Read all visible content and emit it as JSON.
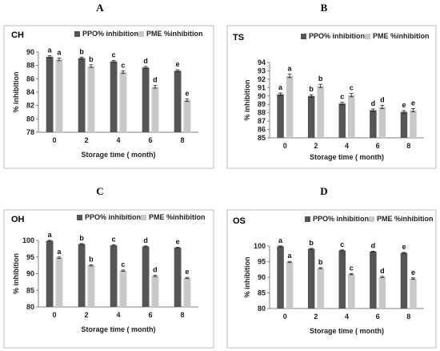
{
  "colors": {
    "ppo": "#555555",
    "pme": "#c8c8c8",
    "frame": "#bdbdbd",
    "axis": "#808080",
    "error": "#222222"
  },
  "chart_data": [
    {
      "type": "bar",
      "panel": "A",
      "title": "CH",
      "categories": [
        "0",
        "2",
        "4",
        "6",
        "8"
      ],
      "xlabel": "Storage time ( month)",
      "ylabel": "% inhibition",
      "ylim": [
        78,
        90
      ],
      "yticks": [
        78,
        80,
        82,
        84,
        86,
        88,
        90
      ],
      "legend_position": "top",
      "grid": false,
      "series": [
        {
          "name": "PPO% inhibition",
          "values": [
            89.3,
            89.1,
            88.6,
            87.7,
            87.2
          ],
          "errors": [
            0.15,
            0.15,
            0.15,
            0.15,
            0.15
          ],
          "letters": [
            "a",
            "b",
            "c",
            "d",
            "e"
          ]
        },
        {
          "name": "PME %inhibition",
          "values": [
            88.9,
            87.9,
            87.0,
            84.8,
            82.8
          ],
          "errors": [
            0.2,
            0.2,
            0.2,
            0.2,
            0.2
          ],
          "letters": [
            "a",
            "b",
            "c",
            "d",
            "e"
          ]
        }
      ]
    },
    {
      "type": "bar",
      "panel": "B",
      "title": "TS",
      "categories": [
        "0",
        "2",
        "4",
        "6",
        "8"
      ],
      "xlabel": "Storage time ( month)",
      "ylabel": "% inhibition",
      "ylim": [
        85,
        94
      ],
      "yticks": [
        85,
        86,
        87,
        88,
        89,
        90,
        91,
        92,
        93,
        94
      ],
      "legend_position": "top",
      "grid": false,
      "series": [
        {
          "name": "PPO% inhibition",
          "values": [
            90.2,
            90.0,
            89.1,
            88.3,
            88.1
          ],
          "errors": [
            0.15,
            0.15,
            0.15,
            0.15,
            0.15
          ],
          "letters": [
            "a",
            "b",
            "c",
            "d",
            "e"
          ]
        },
        {
          "name": "PME %inhibition",
          "values": [
            92.4,
            91.2,
            90.1,
            88.7,
            88.3
          ],
          "errors": [
            0.2,
            0.2,
            0.2,
            0.2,
            0.2
          ],
          "letters": [
            "a",
            "b",
            "c",
            "d",
            "e"
          ]
        }
      ]
    },
    {
      "type": "bar",
      "panel": "C",
      "title": "OH",
      "categories": [
        "0",
        "2",
        "4",
        "6",
        "8"
      ],
      "xlabel": "Storage time ( month)",
      "ylabel": "% inhibition",
      "ylim": [
        80,
        100
      ],
      "yticks": [
        80,
        85,
        90,
        95,
        100
      ],
      "legend_position": "top",
      "grid": false,
      "series": [
        {
          "name": "PPO% inhibition",
          "values": [
            99.9,
            98.9,
            98.5,
            98.2,
            97.8
          ],
          "errors": [
            0.15,
            0.15,
            0.15,
            0.15,
            0.15
          ],
          "letters": [
            "a",
            "b",
            "c",
            "d",
            "e"
          ]
        },
        {
          "name": "PME %inhibition",
          "values": [
            94.8,
            92.5,
            90.9,
            89.3,
            88.7
          ],
          "errors": [
            0.2,
            0.2,
            0.2,
            0.2,
            0.2
          ],
          "letters": [
            "a",
            "b",
            "c",
            "d",
            "e"
          ]
        }
      ]
    },
    {
      "type": "bar",
      "panel": "D",
      "title": "OS",
      "categories": [
        "0",
        "2",
        "4",
        "6",
        "8"
      ],
      "xlabel": "Storage time ( month)",
      "ylabel": "% inhibition",
      "ylim": [
        80,
        100
      ],
      "yticks": [
        80,
        85,
        90,
        95,
        100
      ],
      "legend_position": "top",
      "grid": false,
      "series": [
        {
          "name": "PPO% inhibition",
          "values": [
            99.9,
            99.1,
            98.6,
            98.2,
            97.8
          ],
          "errors": [
            0.15,
            0.15,
            0.15,
            0.15,
            0.15
          ],
          "letters": [
            "a",
            "b",
            "c",
            "d",
            "e"
          ]
        },
        {
          "name": "PME %inhibition",
          "values": [
            94.9,
            92.9,
            91.0,
            90.1,
            89.6
          ],
          "errors": [
            0.2,
            0.2,
            0.2,
            0.2,
            0.2
          ],
          "letters": [
            "a",
            "b",
            "c",
            "d",
            "e"
          ]
        }
      ]
    }
  ]
}
